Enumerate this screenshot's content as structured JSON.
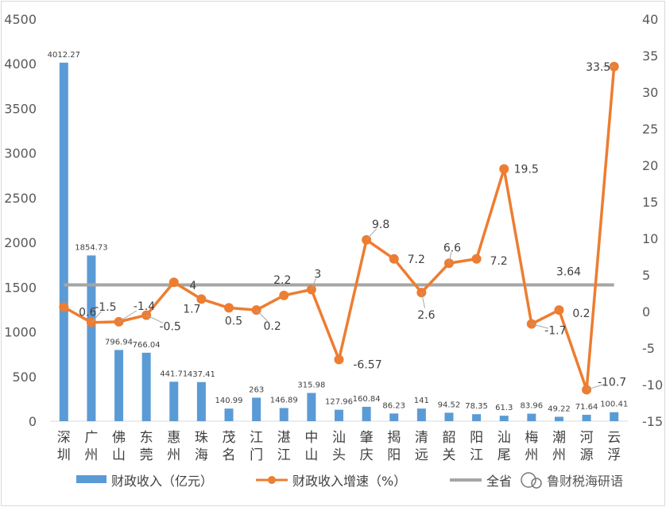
{
  "chart_data": {
    "type": "bar",
    "categories": [
      "深圳",
      "广州",
      "佛山",
      "东莞",
      "惠州",
      "珠海",
      "茂名",
      "江门",
      "湛江",
      "中山",
      "汕头",
      "肇庆",
      "揭阳",
      "清远",
      "韶关",
      "阳江",
      "汕尾",
      "梅州",
      "潮州",
      "河源",
      "云浮"
    ],
    "series": [
      {
        "name": "财政收入（亿元）",
        "type": "bar",
        "axis": "left",
        "color": "#5b9bd5",
        "values": [
          4012.27,
          1854.73,
          796.94,
          766.04,
          441.71,
          437.41,
          140.99,
          263,
          146.89,
          315.98,
          127.96,
          160.84,
          86.23,
          141,
          94.52,
          78.35,
          61.3,
          83.96,
          49.22,
          71.64,
          100.41
        ],
        "labels": [
          "4012.27",
          "1854.73",
          "796.94",
          "766.04",
          "441.71",
          "437.41",
          "140.99",
          "263",
          "146.89",
          "315.98",
          "127.96",
          "160.84",
          "86.23",
          "141",
          "94.52",
          "78.35",
          "61.3",
          "83.96",
          "49.22",
          "71.64",
          "100.41"
        ]
      },
      {
        "name": "财政收入增速（%）",
        "type": "line",
        "axis": "right",
        "color": "#ed7d31",
        "values": [
          0.6,
          -1.5,
          -1.4,
          -0.5,
          4,
          1.7,
          0.5,
          0.2,
          2.2,
          3,
          -6.57,
          9.8,
          7.2,
          2.6,
          6.6,
          7.2,
          19.5,
          -1.7,
          0.2,
          -10.7,
          33.5
        ],
        "labels": [
          "0.6",
          "-1.5",
          "-1.4",
          "-0.5",
          "4",
          "1.7",
          "0.5",
          "0.2",
          "2.2",
          "3",
          "-6.57",
          "9.8",
          "7.2",
          "2.6",
          "6.6",
          "7.2",
          "19.5",
          "-1.7",
          "0.2",
          "-10.7",
          "33.5"
        ]
      },
      {
        "name": "全省",
        "type": "line",
        "axis": "right",
        "color": "#a5a5a5",
        "constant": 3.64,
        "label": "3.64"
      }
    ],
    "y_left": {
      "min": 0,
      "max": 4500,
      "step": 500,
      "ticks": [
        "0",
        "500",
        "1000",
        "1500",
        "2000",
        "2500",
        "3000",
        "3500",
        "4000",
        "4500"
      ]
    },
    "y_right": {
      "min": -15,
      "max": 40,
      "step": 5,
      "ticks": [
        "-15",
        "-10",
        "-5",
        "0",
        "5",
        "10",
        "15",
        "20",
        "25",
        "30",
        "35",
        "40"
      ]
    },
    "grid": false,
    "legend_position": "bottom"
  },
  "legend": [
    {
      "label": "财政收入（亿元）"
    },
    {
      "label": "财政收入增速（%）"
    },
    {
      "label": "全省"
    }
  ],
  "watermark": "鲁财税海研语"
}
